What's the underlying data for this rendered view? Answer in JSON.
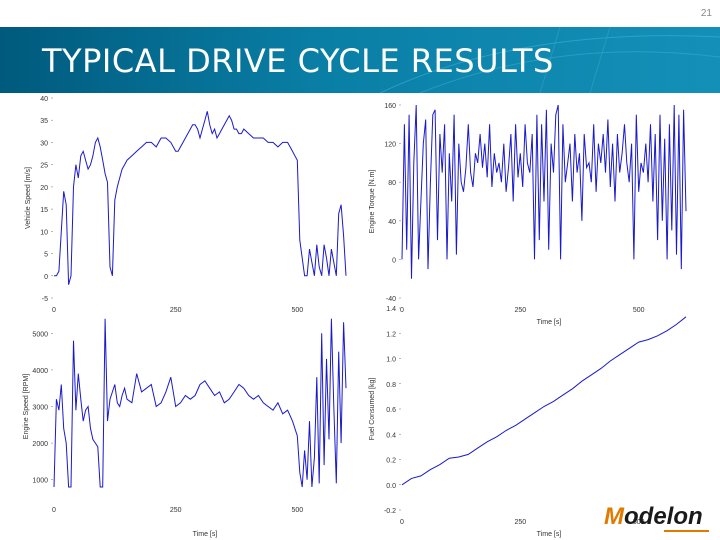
{
  "slide": {
    "page_number": "21",
    "title": "TYPICAL DRIVE CYCLE RESULTS",
    "logo": {
      "prefix": "M",
      "rest": "odelon"
    }
  },
  "colors": {
    "series": "#1a1acc",
    "banner": "#0a7fa6",
    "logo_accent": "#e07b00"
  },
  "chart_data": [
    {
      "type": "line",
      "ylabel": "Vehicle Speed [m/s]",
      "xlabel": "",
      "xticks": [
        0,
        250,
        500
      ],
      "yticks": [
        -5,
        0,
        5,
        10,
        15,
        20,
        25,
        30,
        35,
        40
      ],
      "xlim": [
        0,
        600
      ],
      "ylim": [
        -5,
        40
      ],
      "grid": false,
      "series": [
        {
          "x": [
            0,
            5,
            10,
            15,
            20,
            25,
            30,
            35,
            40,
            45,
            50,
            55,
            60,
            65,
            70,
            75,
            80,
            85,
            90,
            95,
            100,
            105,
            110,
            115,
            120,
            125,
            130,
            135,
            140,
            145,
            150,
            160,
            170,
            180,
            190,
            200,
            210,
            220,
            230,
            240,
            250,
            255,
            260,
            265,
            270,
            275,
            280,
            285,
            290,
            295,
            300,
            305,
            310,
            315,
            320,
            325,
            330,
            335,
            340,
            345,
            350,
            355,
            360,
            365,
            370,
            375,
            380,
            385,
            390,
            400,
            410,
            420,
            430,
            440,
            450,
            460,
            470,
            480,
            490,
            495,
            500,
            505,
            510,
            515,
            520,
            525,
            530,
            535,
            540,
            545,
            550,
            555,
            560,
            565,
            570,
            575,
            580,
            585,
            590,
            595,
            600
          ],
          "y": [
            0,
            0,
            1,
            10,
            19,
            16,
            -2,
            0,
            20,
            25,
            22,
            27,
            28,
            26,
            24,
            25,
            27,
            30,
            31,
            29,
            26,
            23,
            21,
            2,
            0,
            17,
            20,
            22,
            24,
            25,
            26,
            27,
            28,
            29,
            30,
            30,
            29,
            31,
            31,
            30,
            28,
            28,
            29,
            30,
            31,
            32,
            33,
            34,
            34,
            33,
            31,
            33,
            35,
            37,
            34,
            32,
            33,
            31,
            32,
            33,
            34,
            35,
            36,
            35,
            33,
            33,
            32,
            32,
            33,
            32,
            31,
            31,
            31,
            30,
            30,
            29,
            30,
            30,
            28,
            27,
            26,
            8,
            4,
            0,
            0,
            6,
            3,
            0,
            7,
            2,
            0,
            7,
            4,
            0,
            6,
            3,
            0,
            14,
            16,
            9,
            0
          ]
        }
      ]
    },
    {
      "type": "line",
      "ylabel": "Engine Torque [N.m]",
      "xlabel": "Time [s]",
      "xticks": [
        0,
        250,
        500
      ],
      "yticks": [
        -40,
        0,
        40,
        80,
        120,
        160
      ],
      "xlim": [
        0,
        600
      ],
      "ylim": [
        -40,
        160
      ],
      "grid": false,
      "series": [
        {
          "x": [
            0,
            5,
            10,
            15,
            20,
            25,
            30,
            35,
            40,
            45,
            50,
            55,
            60,
            65,
            70,
            75,
            80,
            85,
            90,
            95,
            100,
            105,
            110,
            115,
            120,
            125,
            130,
            135,
            140,
            145,
            150,
            155,
            160,
            165,
            170,
            175,
            180,
            185,
            190,
            195,
            200,
            205,
            210,
            215,
            220,
            225,
            230,
            235,
            240,
            245,
            250,
            255,
            260,
            265,
            270,
            275,
            280,
            285,
            290,
            295,
            300,
            305,
            310,
            315,
            320,
            325,
            330,
            335,
            340,
            345,
            350,
            355,
            360,
            365,
            370,
            375,
            380,
            385,
            390,
            395,
            400,
            405,
            410,
            415,
            420,
            425,
            430,
            435,
            440,
            445,
            450,
            455,
            460,
            465,
            470,
            475,
            480,
            485,
            490,
            495,
            500,
            505,
            510,
            515,
            520,
            525,
            530,
            535,
            540,
            545,
            550,
            555,
            560,
            565,
            570,
            575,
            580,
            585,
            590,
            595,
            600
          ],
          "y": [
            0,
            140,
            10,
            150,
            -20,
            100,
            160,
            0,
            60,
            120,
            145,
            -10,
            80,
            150,
            155,
            20,
            130,
            90,
            140,
            0,
            110,
            60,
            150,
            5,
            120,
            80,
            70,
            95,
            140,
            90,
            75,
            110,
            100,
            130,
            95,
            120,
            85,
            140,
            75,
            110,
            90,
            100,
            80,
            120,
            70,
            95,
            130,
            60,
            140,
            85,
            110,
            75,
            140,
            100,
            90,
            130,
            0,
            150,
            20,
            140,
            60,
            155,
            10,
            120,
            90,
            150,
            160,
            0,
            140,
            80,
            100,
            120,
            60,
            130,
            90,
            110,
            40,
            130,
            95,
            100,
            80,
            140,
            70,
            120,
            100,
            130,
            90,
            145,
            75,
            120,
            60,
            130,
            90,
            110,
            140,
            100,
            80,
            120,
            0,
            150,
            70,
            100,
            90,
            120,
            80,
            140,
            60,
            130,
            20,
            150,
            40,
            125,
            0,
            140,
            30,
            160,
            5,
            150,
            -10,
            155,
            50
          ]
        }
      ]
    },
    {
      "type": "line",
      "ylabel": "Engine Speed [RPM]",
      "xlabel": "Time [s]",
      "xticks": [
        0,
        250,
        500
      ],
      "yticks": [
        1000,
        2000,
        3000,
        4000,
        5000
      ],
      "xlim": [
        0,
        600
      ],
      "ylim": [
        500,
        5500
      ],
      "grid": false,
      "series": [
        {
          "x": [
            0,
            5,
            10,
            15,
            20,
            25,
            30,
            35,
            40,
            45,
            50,
            55,
            60,
            65,
            70,
            75,
            80,
            85,
            90,
            95,
            100,
            105,
            110,
            115,
            120,
            125,
            130,
            135,
            140,
            145,
            150,
            160,
            170,
            180,
            190,
            200,
            210,
            220,
            230,
            240,
            250,
            260,
            270,
            280,
            290,
            300,
            310,
            320,
            330,
            340,
            350,
            360,
            370,
            380,
            390,
            400,
            410,
            420,
            430,
            440,
            450,
            460,
            470,
            480,
            490,
            500,
            505,
            510,
            515,
            520,
            525,
            530,
            535,
            540,
            545,
            550,
            555,
            560,
            565,
            570,
            575,
            580,
            585,
            590,
            595,
            600
          ],
          "y": [
            800,
            3200,
            2900,
            3600,
            2400,
            2000,
            800,
            800,
            4800,
            2900,
            3900,
            3200,
            2600,
            2900,
            3000,
            2400,
            2100,
            2000,
            1900,
            800,
            800,
            5400,
            2600,
            3200,
            3400,
            3600,
            3100,
            3000,
            3300,
            3500,
            3200,
            3100,
            3900,
            3400,
            3500,
            3600,
            3000,
            3100,
            3400,
            3800,
            3000,
            3100,
            3300,
            3200,
            3300,
            3600,
            3700,
            3500,
            3300,
            3400,
            3100,
            3200,
            3400,
            3600,
            3500,
            3300,
            3200,
            3300,
            3100,
            3000,
            2900,
            3100,
            2800,
            2900,
            2600,
            2200,
            1200,
            800,
            1800,
            1000,
            2600,
            800,
            1600,
            3800,
            900,
            5000,
            1400,
            4300,
            2100,
            5400,
            3000,
            900,
            4500,
            2000,
            5300,
            3500
          ]
        }
      ]
    },
    {
      "type": "line",
      "ylabel": "Fuel Consumed [kg]",
      "xlabel": "Time [s]",
      "xticks": [
        0,
        250,
        500
      ],
      "yticks": [
        -0.2,
        0.0,
        0.2,
        0.4,
        0.6,
        0.8,
        1.0,
        1.2,
        1.4
      ],
      "xlim": [
        0,
        600
      ],
      "ylim": [
        -0.2,
        1.4
      ],
      "grid": false,
      "series": [
        {
          "x": [
            0,
            20,
            40,
            60,
            80,
            100,
            120,
            140,
            160,
            180,
            200,
            220,
            240,
            260,
            280,
            300,
            320,
            340,
            360,
            380,
            400,
            420,
            440,
            460,
            480,
            500,
            520,
            540,
            560,
            580,
            600
          ],
          "y": [
            0.0,
            0.05,
            0.07,
            0.12,
            0.16,
            0.21,
            0.22,
            0.24,
            0.29,
            0.34,
            0.38,
            0.43,
            0.47,
            0.52,
            0.57,
            0.62,
            0.66,
            0.71,
            0.76,
            0.82,
            0.87,
            0.92,
            0.98,
            1.03,
            1.08,
            1.13,
            1.15,
            1.18,
            1.22,
            1.27,
            1.33
          ]
        }
      ]
    }
  ]
}
